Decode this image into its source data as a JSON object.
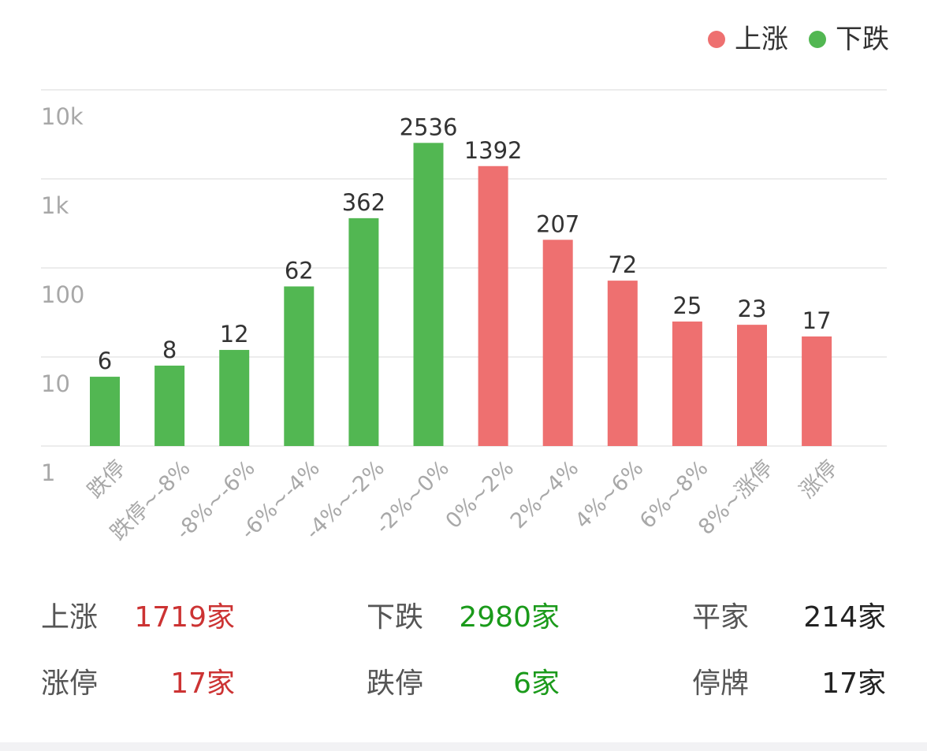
{
  "legend": [
    {
      "label": "上涨",
      "color": "#ee7070"
    },
    {
      "label": "下跌",
      "color": "#52b752"
    }
  ],
  "chart_data": {
    "type": "bar",
    "y_scale": "log",
    "ylim": [
      1,
      10000
    ],
    "y_ticks": [
      {
        "value": 1,
        "label": "1"
      },
      {
        "value": 10,
        "label": "10"
      },
      {
        "value": 100,
        "label": "100"
      },
      {
        "value": 1000,
        "label": "1k"
      },
      {
        "value": 10000,
        "label": "10k"
      }
    ],
    "grid": true,
    "legend_position": "top-right",
    "categories": [
      "跌停",
      "跌停~-8%",
      "-8%~-6%",
      "-6%~-4%",
      "-4%~-2%",
      "-2%~0%",
      "0%~2%",
      "2%~4%",
      "4%~6%",
      "6%~8%",
      "8%~涨停",
      "涨停"
    ],
    "values": [
      6,
      8,
      12,
      62,
      362,
      2536,
      1392,
      207,
      72,
      25,
      23,
      17
    ],
    "value_labels": [
      "6",
      "8",
      "12",
      "62",
      "362",
      "2536",
      "1392",
      "207",
      "72",
      "25",
      "23",
      "17"
    ],
    "series_membership": [
      "下跌",
      "下跌",
      "下跌",
      "下跌",
      "下跌",
      "下跌",
      "上涨",
      "上涨",
      "上涨",
      "上涨",
      "上涨",
      "上涨"
    ]
  },
  "stats": [
    {
      "label": "上涨",
      "value": "1719家",
      "color": "#cc3333"
    },
    {
      "label": "下跌",
      "value": "2980家",
      "color": "#1a9a1a"
    },
    {
      "label": "平家",
      "value": "214家",
      "color": "#222222"
    },
    {
      "label": "涨停",
      "value": "17家",
      "color": "#cc3333"
    },
    {
      "label": "跌停",
      "value": "6家",
      "color": "#1a9a1a"
    },
    {
      "label": "停牌",
      "value": "17家",
      "color": "#222222"
    }
  ]
}
